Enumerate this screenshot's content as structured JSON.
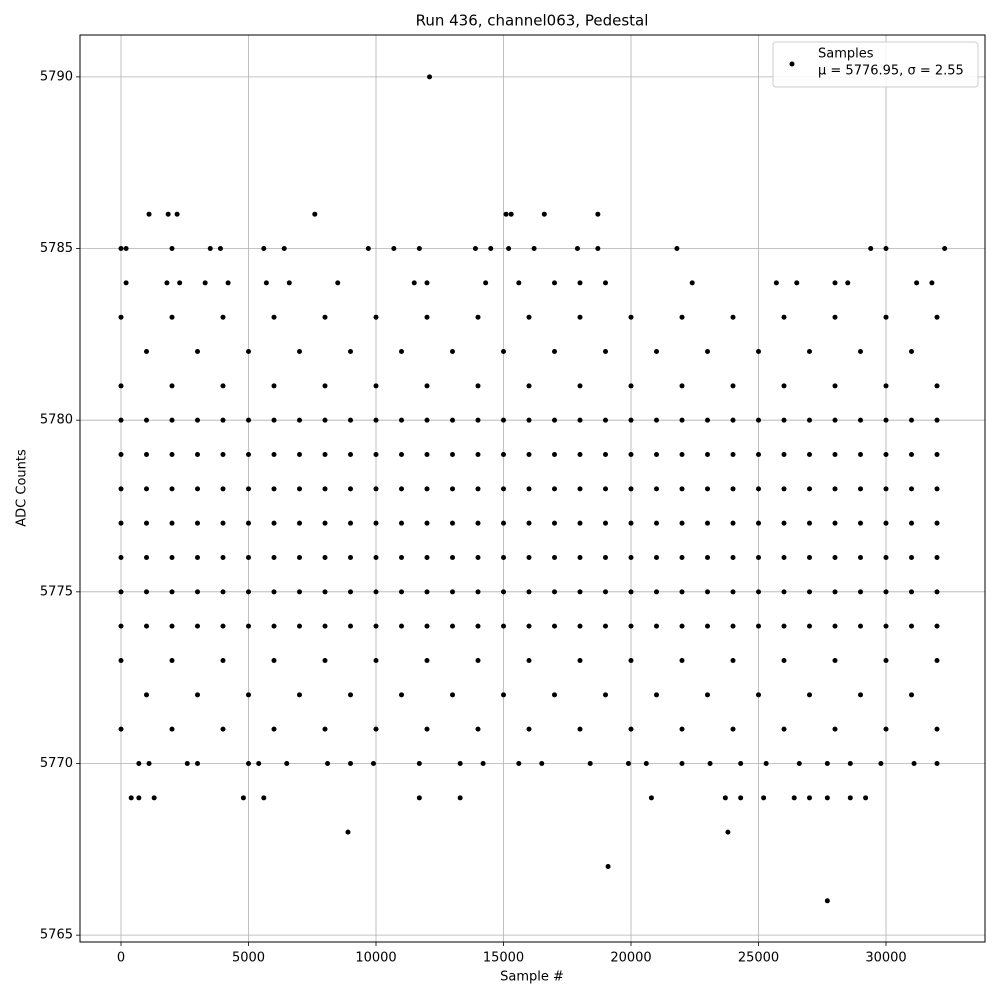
{
  "chart_data": {
    "type": "scatter",
    "title": "Run 436, channel063, Pedestal",
    "x_label": "Sample #",
    "y_label": "ADC Counts",
    "xlim": [
      -1608,
      33882
    ],
    "ylim": [
      5764.8,
      5791.22
    ],
    "xticks": [
      0,
      5000,
      10000,
      15000,
      20000,
      25000,
      30000
    ],
    "yticks": [
      5765,
      5770,
      5775,
      5780,
      5785,
      5790
    ],
    "grid": true,
    "legend": "upper right",
    "series": [
      {
        "name": "Samples",
        "stats_label": "μ = 5776.95, σ = 2.55",
        "color": "#000000",
        "x": [
          0,
          1000,
          2000,
          3000,
          4000,
          5000,
          6000,
          7000,
          8000,
          9000,
          10000,
          11000,
          12000,
          13000,
          14000,
          15000,
          16000,
          17000,
          18000,
          19000,
          20000,
          21000,
          22000,
          23000,
          24000,
          25000,
          26000,
          27000,
          28000,
          29000,
          30000,
          31000,
          32000,
          0,
          1000,
          2000,
          3000,
          4000,
          5000,
          6000,
          7000,
          8000,
          9000,
          10000,
          11000,
          12000,
          13000,
          14000,
          15000,
          16000,
          17000,
          18000,
          19000,
          20000,
          21000,
          22000,
          23000,
          24000,
          25000,
          26000,
          27000,
          28000,
          29000,
          30000,
          31000,
          32000,
          0,
          1000,
          2000,
          3000,
          4000,
          5000,
          6000,
          7000,
          8000,
          9000,
          10000,
          11000,
          12000,
          13000,
          14000,
          15000,
          16000,
          17000,
          18000,
          19000,
          20000,
          21000,
          22000,
          23000,
          24000,
          25000,
          26000,
          27000,
          28000,
          29000,
          30000,
          31000,
          32000,
          0,
          1000,
          2000,
          3000,
          4000,
          5000,
          6000,
          7000,
          8000,
          9000,
          10000,
          11000,
          12000,
          13000,
          14000,
          15000,
          16000,
          17000,
          18000,
          19000,
          20000,
          21000,
          22000,
          23000,
          24000,
          25000,
          26000,
          27000,
          28000,
          29000,
          30000,
          31000,
          32000,
          0,
          1000,
          2000,
          3000,
          4000,
          5000,
          6000,
          7000,
          8000,
          9000,
          10000,
          11000,
          12000,
          13000,
          14000,
          15000,
          16000,
          17000,
          18000,
          19000,
          20000,
          21000,
          22000,
          23000,
          24000,
          25000,
          26000,
          27000,
          28000,
          29000,
          30000,
          31000,
          32000,
          0,
          1000,
          2000,
          3000,
          4000,
          5000,
          6000,
          7000,
          8000,
          9000,
          10000,
          11000,
          12000,
          13000,
          14000,
          15000,
          16000,
          17000,
          18000,
          19000,
          20000,
          21000,
          22000,
          23000,
          24000,
          25000,
          26000,
          27000,
          28000,
          29000,
          30000,
          31000,
          32000,
          0,
          1000,
          2000,
          3000,
          4000,
          5000,
          6000,
          7000,
          8000,
          9000,
          10000,
          11000,
          12000,
          13000,
          14000,
          15000,
          16000,
          17000,
          18000,
          19000,
          20000,
          21000,
          22000,
          23000,
          24000,
          25000,
          26000,
          27000,
          28000,
          29000,
          30000,
          31000,
          32000,
          0,
          2000,
          4000,
          6000,
          8000,
          10000,
          12000,
          14000,
          16000,
          18000,
          20000,
          22000,
          24000,
          26000,
          28000,
          30000,
          32000,
          1000,
          3000,
          5000,
          7000,
          9000,
          11000,
          13000,
          15000,
          17000,
          19000,
          21000,
          23000,
          25000,
          27000,
          29000,
          31000,
          0,
          2000,
          4000,
          6000,
          8000,
          10000,
          12000,
          14000,
          16000,
          18000,
          20000,
          22000,
          24000,
          26000,
          28000,
          30000,
          32000,
          0,
          2000,
          4000,
          6000,
          8000,
          10000,
          12000,
          14000,
          16000,
          18000,
          20000,
          22000,
          24000,
          26000,
          28000,
          30000,
          32000,
          1000,
          3000,
          5000,
          7000,
          9000,
          11000,
          13000,
          15000,
          17000,
          19000,
          21000,
          23000,
          25000,
          27000,
          29000,
          31000,
          0,
          2000,
          4000,
          6000,
          8000,
          10000,
          12000,
          14000,
          16000,
          18000,
          20000,
          22000,
          24000,
          26000,
          28000,
          30000,
          32000,
          12100,
          1100,
          1850,
          2200,
          7600,
          15100,
          15300,
          16600,
          18700,
          0,
          200,
          2000,
          3500,
          3900,
          5600,
          6400,
          9700,
          10700,
          11700,
          13900,
          14500,
          15200,
          16200,
          17900,
          18700,
          21800,
          29400,
          30000,
          32300,
          200,
          1800,
          2300,
          3300,
          4200,
          5700,
          6600,
          8500,
          11500,
          12000,
          14300,
          15600,
          17000,
          18000,
          19000,
          22400,
          25700,
          26500,
          28000,
          28500,
          31200,
          31800,
          700,
          1100,
          2600,
          3000,
          5000,
          5400,
          6500,
          8100,
          9000,
          9900,
          11700,
          13300,
          14200,
          15600,
          16500,
          18400,
          19900,
          20600,
          22000,
          23100,
          24300,
          25300,
          26600,
          27700,
          28600,
          29800,
          31100,
          32000,
          400,
          700,
          1300,
          4800,
          5600,
          11700,
          13300,
          20800,
          23700,
          24300,
          25200,
          26400,
          27000,
          27700,
          28600,
          29200,
          8900,
          23800,
          19100,
          27700
        ],
        "values": [
          5774,
          5774,
          5774,
          5774,
          5774,
          5774,
          5774,
          5774,
          5774,
          5774,
          5774,
          5774,
          5774,
          5774,
          5774,
          5774,
          5774,
          5774,
          5774,
          5774,
          5774,
          5774,
          5774,
          5774,
          5774,
          5774,
          5774,
          5774,
          5774,
          5774,
          5774,
          5774,
          5774,
          5775,
          5775,
          5775,
          5775,
          5775,
          5775,
          5775,
          5775,
          5775,
          5775,
          5775,
          5775,
          5775,
          5775,
          5775,
          5775,
          5775,
          5775,
          5775,
          5775,
          5775,
          5775,
          5775,
          5775,
          5775,
          5775,
          5775,
          5775,
          5775,
          5775,
          5775,
          5775,
          5775,
          5776,
          5776,
          5776,
          5776,
          5776,
          5776,
          5776,
          5776,
          5776,
          5776,
          5776,
          5776,
          5776,
          5776,
          5776,
          5776,
          5776,
          5776,
          5776,
          5776,
          5776,
          5776,
          5776,
          5776,
          5776,
          5776,
          5776,
          5776,
          5776,
          5776,
          5776,
          5776,
          5776,
          5777,
          5777,
          5777,
          5777,
          5777,
          5777,
          5777,
          5777,
          5777,
          5777,
          5777,
          5777,
          5777,
          5777,
          5777,
          5777,
          5777,
          5777,
          5777,
          5777,
          5777,
          5777,
          5777,
          5777,
          5777,
          5777,
          5777,
          5777,
          5777,
          5777,
          5777,
          5777,
          5777,
          5778,
          5778,
          5778,
          5778,
          5778,
          5778,
          5778,
          5778,
          5778,
          5778,
          5778,
          5778,
          5778,
          5778,
          5778,
          5778,
          5778,
          5778,
          5778,
          5778,
          5778,
          5778,
          5778,
          5778,
          5778,
          5778,
          5778,
          5778,
          5778,
          5778,
          5778,
          5778,
          5778,
          5779,
          5779,
          5779,
          5779,
          5779,
          5779,
          5779,
          5779,
          5779,
          5779,
          5779,
          5779,
          5779,
          5779,
          5779,
          5779,
          5779,
          5779,
          5779,
          5779,
          5779,
          5779,
          5779,
          5779,
          5779,
          5779,
          5779,
          5779,
          5779,
          5779,
          5779,
          5779,
          5779,
          5780,
          5780,
          5780,
          5780,
          5780,
          5780,
          5780,
          5780,
          5780,
          5780,
          5780,
          5780,
          5780,
          5780,
          5780,
          5780,
          5780,
          5780,
          5780,
          5780,
          5780,
          5780,
          5780,
          5780,
          5780,
          5780,
          5780,
          5780,
          5780,
          5780,
          5780,
          5780,
          5780,
          5771,
          5771,
          5771,
          5771,
          5771,
          5771,
          5771,
          5771,
          5771,
          5771,
          5771,
          5771,
          5771,
          5771,
          5771,
          5771,
          5771,
          5772,
          5772,
          5772,
          5772,
          5772,
          5772,
          5772,
          5772,
          5772,
          5772,
          5772,
          5772,
          5772,
          5772,
          5772,
          5772,
          5773,
          5773,
          5773,
          5773,
          5773,
          5773,
          5773,
          5773,
          5773,
          5773,
          5773,
          5773,
          5773,
          5773,
          5773,
          5773,
          5773,
          5781,
          5781,
          5781,
          5781,
          5781,
          5781,
          5781,
          5781,
          5781,
          5781,
          5781,
          5781,
          5781,
          5781,
          5781,
          5781,
          5781,
          5782,
          5782,
          5782,
          5782,
          5782,
          5782,
          5782,
          5782,
          5782,
          5782,
          5782,
          5782,
          5782,
          5782,
          5782,
          5782,
          5783,
          5783,
          5783,
          5783,
          5783,
          5783,
          5783,
          5783,
          5783,
          5783,
          5783,
          5783,
          5783,
          5783,
          5783,
          5783,
          5783,
          5790,
          5786,
          5786,
          5786,
          5786,
          5786,
          5786,
          5786,
          5786,
          5785,
          5785,
          5785,
          5785,
          5785,
          5785,
          5785,
          5785,
          5785,
          5785,
          5785,
          5785,
          5785,
          5785,
          5785,
          5785,
          5785,
          5785,
          5785,
          5785,
          5784,
          5784,
          5784,
          5784,
          5784,
          5784,
          5784,
          5784,
          5784,
          5784,
          5784,
          5784,
          5784,
          5784,
          5784,
          5784,
          5784,
          5784,
          5784,
          5784,
          5784,
          5784,
          5770,
          5770,
          5770,
          5770,
          5770,
          5770,
          5770,
          5770,
          5770,
          5770,
          5770,
          5770,
          5770,
          5770,
          5770,
          5770,
          5770,
          5770,
          5770,
          5770,
          5770,
          5770,
          5770,
          5770,
          5770,
          5770,
          5770,
          5770,
          5769,
          5769,
          5769,
          5769,
          5769,
          5769,
          5769,
          5769,
          5769,
          5769,
          5769,
          5769,
          5769,
          5769,
          5769,
          5769,
          5768,
          5768,
          5767,
          5766
        ]
      }
    ]
  }
}
